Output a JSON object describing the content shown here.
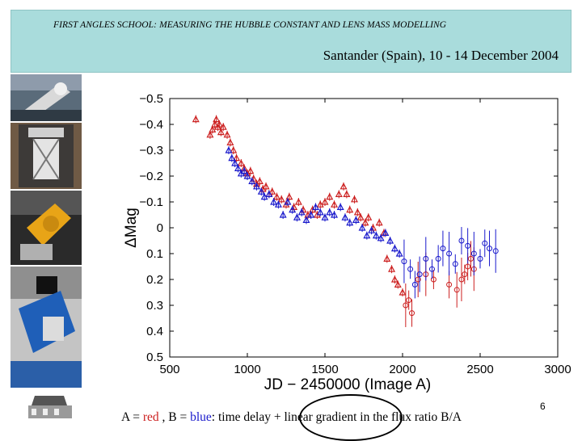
{
  "header": {
    "title": "FIRST ANGLES SCHOOL: MEASURING THE HUBBLE CONSTANT AND LENS MASS MODELLING",
    "subtitle": "Santander (Spain), 10 - 14 December 2004"
  },
  "photos": [
    "telescope-dome-photo",
    "telescope-tube-photo",
    "telescope-mount-photo",
    "blue-telescope-photo",
    "observatory-building-photo"
  ],
  "caption": {
    "part1": "A = ",
    "red_word": "red",
    "part2": " , B = ",
    "blue_word": "blue",
    "part3": ": time delay + linear gradient in the flux ratio B/A"
  },
  "page_number": "6",
  "colors": {
    "header_bg": "#a9dcdc",
    "series_red": "#cc2020",
    "series_blue": "#1a1acc"
  },
  "chart_data": {
    "type": "scatter",
    "title": "",
    "xlabel": "JD − 2450000 (Image A)",
    "ylabel": "ΔMag",
    "xlim": [
      500,
      3000
    ],
    "ylim": [
      0.5,
      -0.5
    ],
    "y_inverted": true,
    "xticks": [
      500,
      1000,
      1500,
      2000,
      2500,
      3000
    ],
    "xtick_labels": [
      "500",
      "1000",
      "1500",
      "2000",
      "2500",
      "3000"
    ],
    "yticks": [
      -0.5,
      -0.4,
      -0.3,
      -0.2,
      -0.1,
      0,
      0.1,
      0.2,
      0.3,
      0.4,
      0.5
    ],
    "ytick_labels": [
      "−0.5",
      "−0.4",
      "−0.3",
      "−0.2",
      "−0.1",
      "0",
      "0.1",
      "0.2",
      "0.3",
      "0.4",
      "0.5"
    ],
    "series": [
      {
        "name": "A",
        "color": "red",
        "points": [
          [
            668,
            -0.42
          ],
          [
            760,
            -0.36
          ],
          [
            775,
            -0.38
          ],
          [
            790,
            -0.4
          ],
          [
            800,
            -0.42
          ],
          [
            810,
            -0.39
          ],
          [
            820,
            -0.4
          ],
          [
            830,
            -0.37
          ],
          [
            845,
            -0.39
          ],
          [
            870,
            -0.36
          ],
          [
            890,
            -0.33
          ],
          [
            910,
            -0.3
          ],
          [
            930,
            -0.27
          ],
          [
            960,
            -0.25
          ],
          [
            980,
            -0.23
          ],
          [
            1000,
            -0.21
          ],
          [
            1020,
            -0.22
          ],
          [
            1040,
            -0.19
          ],
          [
            1060,
            -0.17
          ],
          [
            1080,
            -0.18
          ],
          [
            1100,
            -0.15
          ],
          [
            1120,
            -0.16
          ],
          [
            1140,
            -0.13
          ],
          [
            1160,
            -0.14
          ],
          [
            1190,
            -0.12
          ],
          [
            1220,
            -0.11
          ],
          [
            1250,
            -0.09
          ],
          [
            1270,
            -0.12
          ],
          [
            1300,
            -0.08
          ],
          [
            1330,
            -0.1
          ],
          [
            1360,
            -0.07
          ],
          [
            1390,
            -0.05
          ],
          [
            1420,
            -0.07
          ],
          [
            1450,
            -0.05
          ],
          [
            1470,
            -0.09
          ],
          [
            1500,
            -0.1
          ],
          [
            1530,
            -0.12
          ],
          [
            1560,
            -0.09
          ],
          [
            1590,
            -0.13
          ],
          [
            1620,
            -0.16
          ],
          [
            1640,
            -0.13
          ],
          [
            1660,
            -0.07
          ],
          [
            1690,
            -0.11
          ],
          [
            1710,
            -0.06
          ],
          [
            1730,
            -0.04
          ],
          [
            1760,
            -0.02
          ],
          [
            1780,
            -0.04
          ],
          [
            1810,
            0.0
          ],
          [
            1850,
            -0.02
          ],
          [
            1880,
            0.02
          ],
          [
            1900,
            0.12
          ],
          [
            1930,
            0.16
          ],
          [
            1950,
            0.2
          ],
          [
            1970,
            0.22
          ],
          [
            2000,
            0.25
          ],
          [
            2020,
            0.3
          ],
          [
            2040,
            0.28
          ],
          [
            2060,
            0.33
          ],
          [
            2100,
            0.2
          ],
          [
            2150,
            0.18
          ],
          [
            2200,
            0.2
          ],
          [
            2300,
            0.22
          ],
          [
            2350,
            0.24
          ],
          [
            2380,
            0.2
          ],
          [
            2400,
            0.18
          ],
          [
            2420,
            0.15
          ],
          [
            2440,
            0.12
          ],
          [
            2460,
            0.16
          ]
        ]
      },
      {
        "name": "B",
        "color": "blue",
        "points": [
          [
            880,
            -0.3
          ],
          [
            900,
            -0.27
          ],
          [
            920,
            -0.25
          ],
          [
            940,
            -0.23
          ],
          [
            960,
            -0.21
          ],
          [
            980,
            -0.22
          ],
          [
            1000,
            -0.2
          ],
          [
            1030,
            -0.18
          ],
          [
            1060,
            -0.16
          ],
          [
            1090,
            -0.14
          ],
          [
            1110,
            -0.12
          ],
          [
            1140,
            -0.13
          ],
          [
            1170,
            -0.1
          ],
          [
            1200,
            -0.09
          ],
          [
            1230,
            -0.05
          ],
          [
            1260,
            -0.1
          ],
          [
            1290,
            -0.07
          ],
          [
            1320,
            -0.04
          ],
          [
            1350,
            -0.06
          ],
          [
            1380,
            -0.03
          ],
          [
            1410,
            -0.05
          ],
          [
            1440,
            -0.08
          ],
          [
            1470,
            -0.06
          ],
          [
            1500,
            -0.04
          ],
          [
            1530,
            -0.06
          ],
          [
            1560,
            -0.05
          ],
          [
            1600,
            -0.08
          ],
          [
            1630,
            -0.04
          ],
          [
            1660,
            -0.02
          ],
          [
            1700,
            -0.03
          ],
          [
            1740,
            0.0
          ],
          [
            1770,
            0.03
          ],
          [
            1800,
            0.01
          ],
          [
            1830,
            0.03
          ],
          [
            1860,
            0.04
          ],
          [
            1890,
            0.02
          ],
          [
            1920,
            0.05
          ],
          [
            1950,
            0.08
          ],
          [
            1980,
            0.1
          ],
          [
            2010,
            0.13
          ],
          [
            2050,
            0.16
          ],
          [
            2080,
            0.22
          ],
          [
            2110,
            0.18
          ],
          [
            2150,
            0.12
          ],
          [
            2190,
            0.16
          ],
          [
            2230,
            0.12
          ],
          [
            2260,
            0.08
          ],
          [
            2300,
            0.1
          ],
          [
            2340,
            0.14
          ],
          [
            2380,
            0.05
          ],
          [
            2420,
            0.07
          ],
          [
            2460,
            0.1
          ],
          [
            2500,
            0.12
          ],
          [
            2530,
            0.06
          ],
          [
            2560,
            0.08
          ],
          [
            2600,
            0.09
          ]
        ]
      }
    ]
  }
}
